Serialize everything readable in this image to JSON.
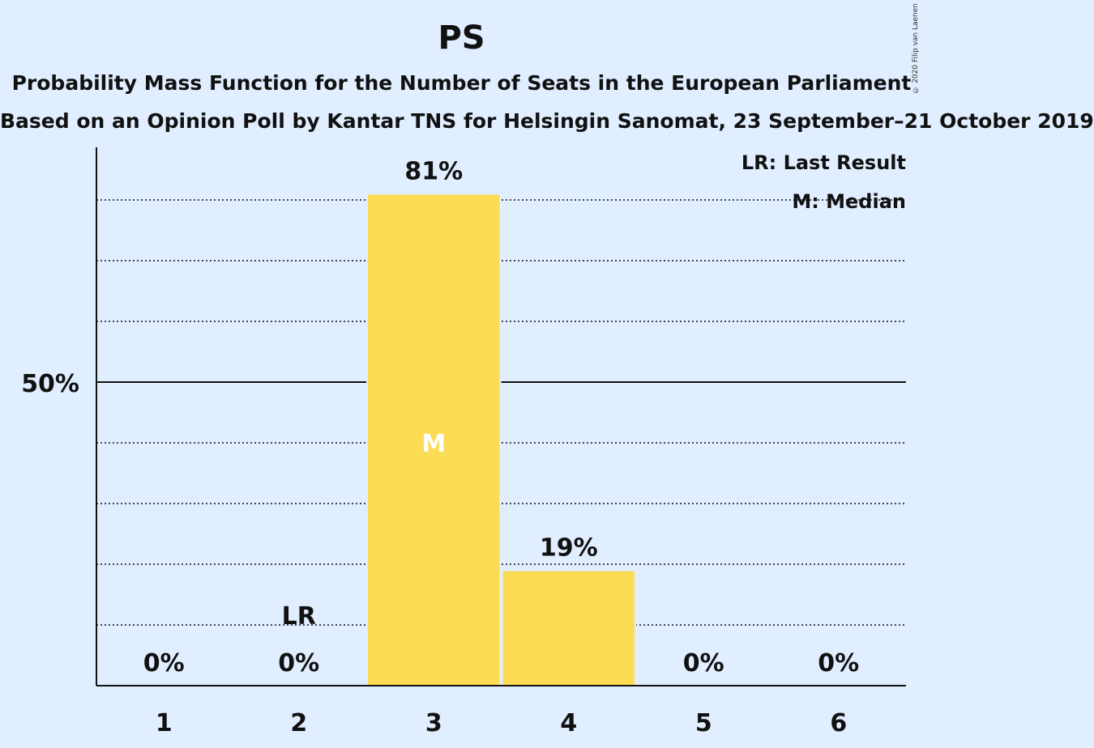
{
  "title": "PS",
  "subtitle": "Probability Mass Function for the Number of Seats in the European Parliament",
  "subtitle2": "Based on an Opinion Poll by Kantar TNS for Helsingin Sanomat, 23 September–21 October 2019",
  "copyright": "© 2020 Filip van Laenen",
  "legend": {
    "last_result": "LR: Last Result",
    "median": "M: Median"
  },
  "colors": {
    "background": "#e0eeff",
    "bar": "#fcdc55",
    "median_marker": "#ffffff"
  },
  "chart_data": {
    "type": "bar",
    "categories": [
      "1",
      "2",
      "3",
      "4",
      "5",
      "6"
    ],
    "values": [
      0,
      0,
      81,
      19,
      0,
      0
    ],
    "value_labels": [
      "0%",
      "0%",
      "81%",
      "19%",
      "0%",
      "0%"
    ],
    "ylim": [
      0,
      88
    ],
    "y_tick_label": "50%",
    "y_tick_value": 50,
    "gridlines": [
      10,
      20,
      30,
      40,
      60,
      70,
      80
    ],
    "last_result_category": "2",
    "last_result_label": "LR",
    "median_category": "3",
    "median_label": "M",
    "grid": true,
    "legend_position": "top-right"
  }
}
